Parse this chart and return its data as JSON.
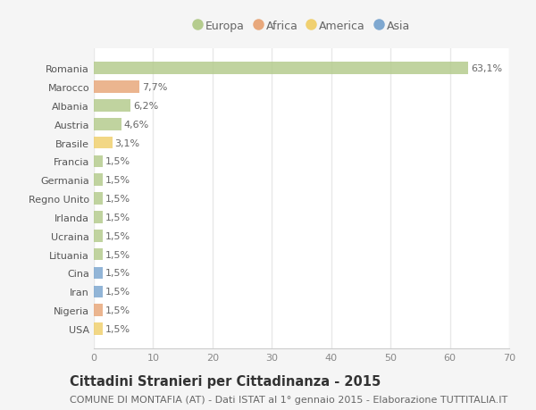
{
  "countries": [
    "Romania",
    "Marocco",
    "Albania",
    "Austria",
    "Brasile",
    "Francia",
    "Germania",
    "Regno Unito",
    "Irlanda",
    "Ucraina",
    "Lituania",
    "Cina",
    "Iran",
    "Nigeria",
    "USA"
  ],
  "values": [
    63.1,
    7.7,
    6.2,
    4.6,
    3.1,
    1.5,
    1.5,
    1.5,
    1.5,
    1.5,
    1.5,
    1.5,
    1.5,
    1.5,
    1.5
  ],
  "labels": [
    "63,1%",
    "7,7%",
    "6,2%",
    "4,6%",
    "3,1%",
    "1,5%",
    "1,5%",
    "1,5%",
    "1,5%",
    "1,5%",
    "1,5%",
    "1,5%",
    "1,5%",
    "1,5%",
    "1,5%"
  ],
  "continents": [
    "Europa",
    "Africa",
    "Europa",
    "Europa",
    "America",
    "Europa",
    "Europa",
    "Europa",
    "Europa",
    "Europa",
    "Europa",
    "Asia",
    "Asia",
    "Africa",
    "America"
  ],
  "colors": {
    "Europa": "#b5cc8e",
    "Africa": "#e8a87c",
    "America": "#f0d070",
    "Asia": "#7fa8d0"
  },
  "legend_order": [
    "Europa",
    "Africa",
    "America",
    "Asia"
  ],
  "legend_colors": [
    "#b5cc8e",
    "#e8a87c",
    "#f0d070",
    "#7fa8d0"
  ],
  "xlim": [
    0,
    70
  ],
  "xticks": [
    0,
    10,
    20,
    30,
    40,
    50,
    60,
    70
  ],
  "title": "Cittadini Stranieri per Cittadinanza - 2015",
  "subtitle": "COMUNE DI MONTAFIA (AT) - Dati ISTAT al 1° gennaio 2015 - Elaborazione TUTTITALIA.IT",
  "background_color": "#f5f5f5",
  "plot_bg_color": "#ffffff",
  "grid_color": "#e8e8e8",
  "bar_height": 0.65,
  "title_fontsize": 10.5,
  "subtitle_fontsize": 8,
  "label_fontsize": 8,
  "tick_fontsize": 8,
  "legend_fontsize": 9
}
